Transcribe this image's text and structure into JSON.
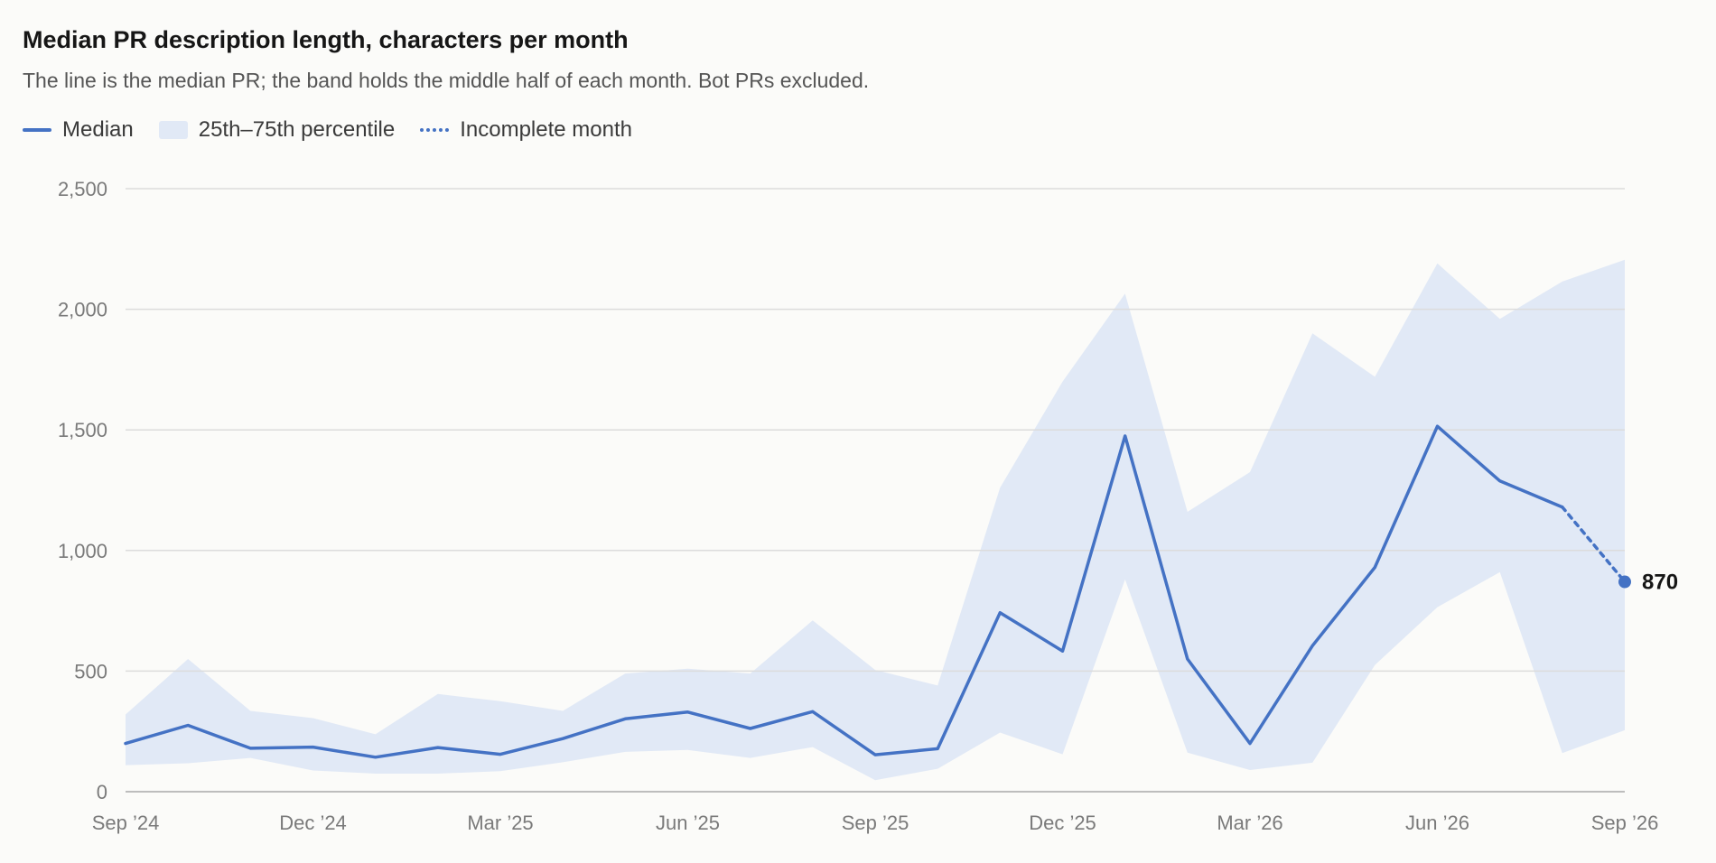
{
  "header": {
    "title": "Median PR description length, characters per month",
    "subtitle": "The line is the median PR; the band holds the middle half of each month. Bot PRs excluded."
  },
  "legend": {
    "median": "Median",
    "band": "25th–75th percentile",
    "incomplete": "Incomplete month"
  },
  "colors": {
    "line": "#4472c4",
    "band": "#e1e9f6",
    "grid": "#dcdcdc"
  },
  "chart_data": {
    "type": "line",
    "title": "Median PR description length, characters per month",
    "subtitle": "The line is the median PR; the band holds the middle half of each month. Bot PRs excluded.",
    "xlabel": "",
    "ylabel": "",
    "x": [
      "2024-09",
      "2024-10",
      "2024-11",
      "2024-12",
      "2025-01",
      "2025-02",
      "2025-03",
      "2025-04",
      "2025-05",
      "2025-06",
      "2025-07",
      "2025-08",
      "2025-09",
      "2025-10",
      "2025-11",
      "2025-12",
      "2026-01",
      "2026-02",
      "2026-03",
      "2026-04",
      "2026-05",
      "2026-06",
      "2026-07",
      "2026-08",
      "2026-09"
    ],
    "x_tick_labels": [
      "Sep ’24",
      "Dec ’24",
      "Mar ’25",
      "Jun ’25",
      "Sep ’25",
      "Dec ’25",
      "Mar ’26",
      "Jun ’26",
      "Sep ’26"
    ],
    "x_tick_positions": [
      "2024-09",
      "2024-12",
      "2025-03",
      "2025-06",
      "2025-09",
      "2025-12",
      "2026-03",
      "2026-06",
      "2026-09"
    ],
    "ylim": [
      0,
      2500
    ],
    "y_ticks": [
      0,
      500,
      1000,
      1500,
      2000,
      2500
    ],
    "y_tick_labels": [
      "0",
      "500",
      "1,000",
      "1,500",
      "2,000",
      "2,500"
    ],
    "grid": true,
    "legend_position": "top-left",
    "series": [
      {
        "name": "Median",
        "values": [
          200,
          275,
          180,
          185,
          143,
          183,
          155,
          220,
          302,
          330,
          262,
          332,
          153,
          178,
          742,
          583,
          1475,
          550,
          200,
          605,
          930,
          1515,
          1288,
          1180,
          870
        ]
      },
      {
        "name": "25th–75th percentile",
        "lower": [
          110,
          118,
          140,
          88,
          75,
          75,
          85,
          122,
          165,
          173,
          140,
          185,
          48,
          95,
          245,
          155,
          880,
          162,
          90,
          120,
          525,
          765,
          910,
          160,
          255
        ],
        "upper": [
          320,
          550,
          335,
          305,
          238,
          405,
          375,
          335,
          490,
          510,
          490,
          710,
          505,
          440,
          1260,
          1700,
          2065,
          1160,
          1325,
          1900,
          1720,
          2190,
          1960,
          2115,
          2205
        ]
      }
    ],
    "incomplete_from_index": 23,
    "end_label": "870"
  }
}
